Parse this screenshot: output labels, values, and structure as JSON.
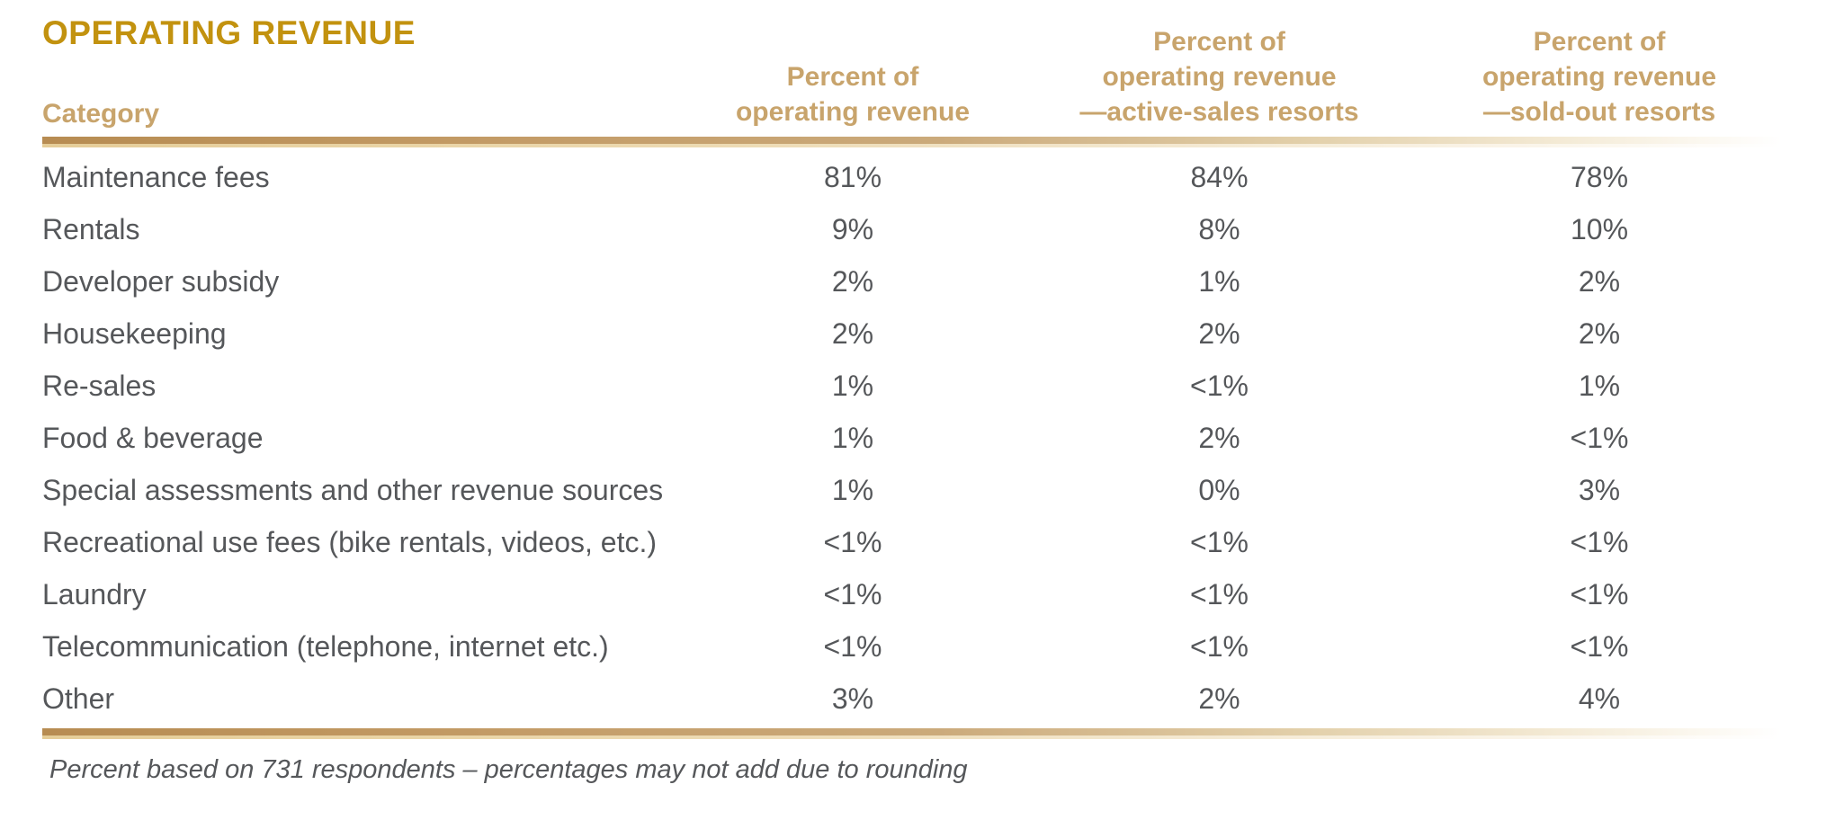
{
  "title": "OPERATING REVENUE",
  "table": {
    "category_header": "Category",
    "value_columns": [
      {
        "lines": [
          "Percent of",
          "operating revenue",
          ""
        ]
      },
      {
        "lines": [
          "Percent of",
          "operating revenue",
          "—active-sales resorts"
        ]
      },
      {
        "lines": [
          "Percent of",
          "operating revenue",
          "—sold-out resorts"
        ]
      }
    ],
    "rows": [
      {
        "category": "Maintenance fees",
        "values": [
          "81%",
          "84%",
          "78%"
        ]
      },
      {
        "category": "Rentals",
        "values": [
          "9%",
          "8%",
          "10%"
        ]
      },
      {
        "category": "Developer subsidy",
        "values": [
          "2%",
          "1%",
          "2%"
        ]
      },
      {
        "category": "Housekeeping",
        "values": [
          "2%",
          "2%",
          "2%"
        ]
      },
      {
        "category": "Re-sales",
        "values": [
          "1%",
          "<1%",
          "1%"
        ]
      },
      {
        "category": "Food & beverage",
        "values": [
          "1%",
          "2%",
          "<1%"
        ]
      },
      {
        "category": "Special assessments and other revenue sources",
        "values": [
          "1%",
          "0%",
          "3%"
        ]
      },
      {
        "category": "Recreational use fees (bike rentals, videos, etc.)",
        "values": [
          "<1%",
          "<1%",
          "<1%"
        ]
      },
      {
        "category": "Laundry",
        "values": [
          "<1%",
          "<1%",
          "<1%"
        ]
      },
      {
        "category": "Telecommunication (telephone, internet etc.)",
        "values": [
          "<1%",
          "<1%",
          "<1%"
        ]
      },
      {
        "category": "Other",
        "values": [
          "3%",
          "2%",
          "4%"
        ]
      }
    ]
  },
  "footnote": "Percent based on 731 respondents – percentages may not add due to rounding",
  "colors": {
    "title_gold": "#c2920f",
    "header_tan": "#c8a46c",
    "body_text": "#55575a",
    "rule_gold_start": "#b78c52",
    "rule_gold_end": "#fbf7ee"
  },
  "chart_data": {
    "type": "table",
    "title": "OPERATING REVENUE",
    "columns": [
      "Category",
      "Percent of operating revenue",
      "Percent of operating revenue —active-sales resorts",
      "Percent of operating revenue —sold-out resorts"
    ],
    "rows": [
      [
        "Maintenance fees",
        "81%",
        "84%",
        "78%"
      ],
      [
        "Rentals",
        "9%",
        "8%",
        "10%"
      ],
      [
        "Developer subsidy",
        "2%",
        "1%",
        "2%"
      ],
      [
        "Housekeeping",
        "2%",
        "2%",
        "2%"
      ],
      [
        "Re-sales",
        "1%",
        "<1%",
        "1%"
      ],
      [
        "Food & beverage",
        "1%",
        "2%",
        "<1%"
      ],
      [
        "Special assessments and other revenue sources",
        "1%",
        "0%",
        "3%"
      ],
      [
        "Recreational use fees (bike rentals, videos, etc.)",
        "<1%",
        "<1%",
        "<1%"
      ],
      [
        "Laundry",
        "<1%",
        "<1%",
        "<1%"
      ],
      [
        "Telecommunication (telephone, internet etc.)",
        "<1%",
        "<1%",
        "<1%"
      ],
      [
        "Other",
        "3%",
        "2%",
        "4%"
      ]
    ],
    "footnote": "Percent based on 731 respondents – percentages may not add due to rounding"
  }
}
